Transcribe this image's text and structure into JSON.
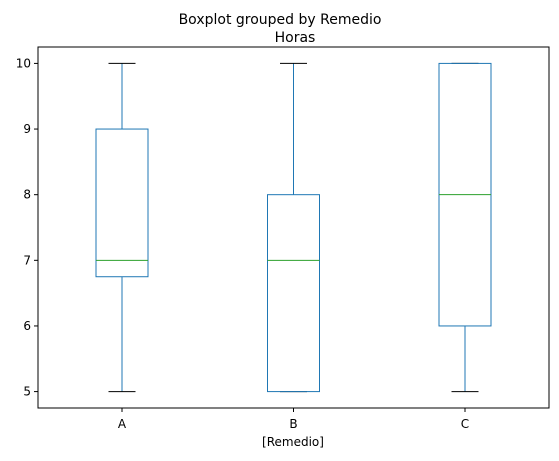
{
  "chart_data": {
    "type": "boxplot",
    "suptitle": "Boxplot grouped by Remedio",
    "title": "Horas",
    "xlabel": "[Remedio]",
    "ylabel": "",
    "categories": [
      "A",
      "B",
      "C"
    ],
    "yticks": [
      5,
      6,
      7,
      8,
      9,
      10
    ],
    "ylim": [
      4.75,
      10.25
    ],
    "grid": false,
    "boxes": [
      {
        "category": "A",
        "whisker_low": 5,
        "q1": 6.75,
        "median": 7,
        "q3": 9,
        "whisker_high": 10
      },
      {
        "category": "B",
        "whisker_low": 5,
        "q1": 5,
        "median": 7,
        "q3": 8,
        "whisker_high": 10
      },
      {
        "category": "C",
        "whisker_low": 5,
        "q1": 6,
        "median": 8,
        "q3": 10,
        "whisker_high": 10
      }
    ],
    "colors": {
      "box": "#1f77b4",
      "median": "#2ca02c",
      "cap": "#000000",
      "axes": "#000000"
    }
  }
}
